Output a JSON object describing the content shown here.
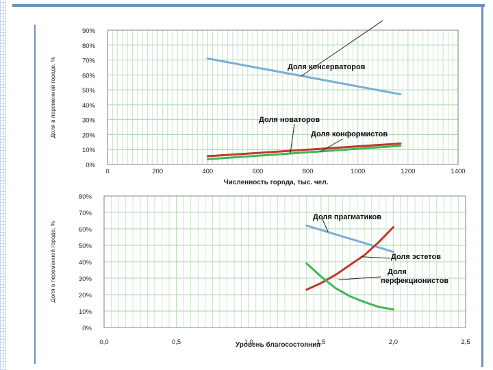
{
  "chart_data": [
    {
      "type": "line",
      "xlabel": "Численность города, тыс. чел.",
      "ylabel": "Доля в переменной городе, %",
      "xlim": [
        0,
        1400
      ],
      "ylim": [
        0,
        90
      ],
      "x_ticks": [
        "0",
        "200",
        "400",
        "600",
        "800",
        "1000",
        "1200",
        "1400"
      ],
      "y_ticks": [
        "0%",
        "10%",
        "20%",
        "30%",
        "40%",
        "50%",
        "60%",
        "70%",
        "80%",
        "90%"
      ],
      "grid": true,
      "series": [
        {
          "name": "Доля консерваторов",
          "color": "#7aaed6",
          "x": [
            400,
            1170
          ],
          "y": [
            71,
            47
          ]
        },
        {
          "name": "Доля новаторов",
          "color": "#c0392b",
          "x": [
            400,
            1170
          ],
          "y": [
            5.5,
            14
          ]
        },
        {
          "name": "Доля конформистов",
          "color": "#3cba54",
          "x": [
            400,
            1170
          ],
          "y": [
            3.5,
            12.5
          ]
        }
      ]
    },
    {
      "type": "line",
      "xlabel": "Уровень благосостояния",
      "ylabel": "Доля в переменной городе, %",
      "xlim": [
        0,
        2.5
      ],
      "ylim": [
        0,
        80
      ],
      "x_ticks": [
        "0,0",
        "0,5",
        "1,0",
        "1,5",
        "2,0",
        "2,5"
      ],
      "y_ticks": [
        "0%",
        "10%",
        "20%",
        "30%",
        "40%",
        "50%",
        "60%",
        "70%",
        "80%"
      ],
      "grid": true,
      "series": [
        {
          "name": "Доля прагматиков",
          "color": "#7aaed6",
          "x": [
            1.4,
            2.0
          ],
          "y": [
            62,
            46
          ]
        },
        {
          "name": "Доля эстетов",
          "color": "#c0392b",
          "x": [
            1.4,
            1.5,
            1.6,
            1.7,
            1.8,
            1.9,
            2.0
          ],
          "y": [
            23,
            27,
            32,
            38,
            44,
            52,
            61
          ]
        },
        {
          "name": "Доля перфекционистов",
          "color": "#3cba54",
          "x": [
            1.4,
            1.5,
            1.6,
            1.7,
            1.8,
            1.9,
            2.0
          ],
          "y": [
            39,
            31,
            24,
            19,
            15.5,
            12.5,
            11
          ]
        }
      ]
    }
  ]
}
